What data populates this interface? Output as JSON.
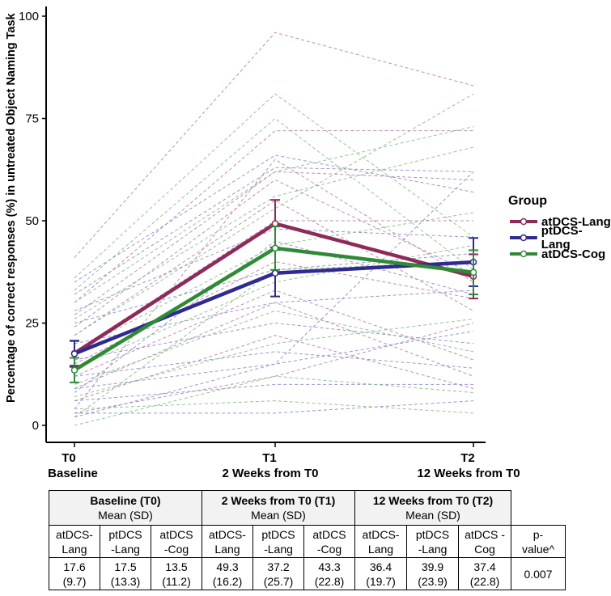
{
  "chart_data": {
    "type": "line",
    "ylabel": "Percentage of correct responses (%) in untreated Object Naming Task",
    "ylim": [
      0,
      100
    ],
    "yticks": [
      "0",
      "25",
      "50",
      "75",
      "100"
    ],
    "x_ticks": [
      {
        "label": "T0",
        "sublabel": "Baseline"
      },
      {
        "label": "T1",
        "sublabel": "2 Weeks from T0"
      },
      {
        "label": "T2",
        "sublabel": "12 Weeks from T0"
      }
    ],
    "legend_title": "Group",
    "colors": {
      "atDCS-Lang": "#8e2a5a",
      "ptDCS-Lang": "#2f2a8f",
      "atDCS-Cog": "#2f8a35"
    },
    "series": [
      {
        "name": "atDCS-Lang",
        "values": [
          17.6,
          49.3,
          36.4
        ],
        "ci_low": [
          14.6,
          43.5,
          31.0
        ],
        "ci_high": [
          20.6,
          55.1,
          41.8
        ]
      },
      {
        "name": "ptDCS-Lang",
        "values": [
          17.5,
          37.2,
          39.9
        ],
        "ci_low": [
          14.3,
          31.5,
          34.0
        ],
        "ci_high": [
          20.7,
          42.9,
          45.8
        ]
      },
      {
        "name": "atDCS-Cog",
        "values": [
          13.5,
          43.3,
          37.4
        ],
        "ci_low": [
          10.5,
          38.0,
          32.0
        ],
        "ci_high": [
          16.5,
          48.6,
          42.8
        ]
      }
    ],
    "individual_lines": [
      {
        "group": "atDCS-Lang",
        "values": [
          41,
          96,
          83
        ]
      },
      {
        "group": "atDCS-Lang",
        "values": [
          30,
          72,
          72
        ]
      },
      {
        "group": "atDCS-Lang",
        "values": [
          27,
          62,
          60
        ]
      },
      {
        "group": "atDCS-Lang",
        "values": [
          22,
          55,
          28
        ]
      },
      {
        "group": "atDCS-Lang",
        "values": [
          18,
          50,
          50
        ]
      },
      {
        "group": "atDCS-Lang",
        "values": [
          15,
          40,
          31
        ]
      },
      {
        "group": "atDCS-Lang",
        "values": [
          12,
          33,
          16
        ]
      },
      {
        "group": "atDCS-Lang",
        "values": [
          9,
          30,
          12
        ]
      },
      {
        "group": "atDCS-Lang",
        "values": [
          6,
          22,
          9
        ]
      },
      {
        "group": "atDCS-Lang",
        "values": [
          4,
          65,
          35
        ]
      },
      {
        "group": "atDCS-Lang",
        "values": [
          24,
          60,
          37
        ]
      },
      {
        "group": "atDCS-Lang",
        "values": [
          3,
          12,
          25
        ]
      },
      {
        "group": "ptDCS-Lang",
        "values": [
          35,
          66,
          57
        ]
      },
      {
        "group": "ptDCS-Lang",
        "values": [
          32,
          63,
          62
        ]
      },
      {
        "group": "ptDCS-Lang",
        "values": [
          28,
          48,
          46
        ]
      },
      {
        "group": "ptDCS-Lang",
        "values": [
          25,
          38,
          42
        ]
      },
      {
        "group": "ptDCS-Lang",
        "values": [
          20,
          30,
          33
        ]
      },
      {
        "group": "ptDCS-Lang",
        "values": [
          16,
          25,
          20
        ]
      },
      {
        "group": "ptDCS-Lang",
        "values": [
          12,
          18,
          14
        ]
      },
      {
        "group": "ptDCS-Lang",
        "values": [
          9,
          15,
          23
        ]
      },
      {
        "group": "ptDCS-Lang",
        "values": [
          6,
          10,
          10
        ]
      },
      {
        "group": "ptDCS-Lang",
        "values": [
          3,
          3,
          6
        ]
      },
      {
        "group": "ptDCS-Lang",
        "values": [
          2,
          15,
          62
        ]
      },
      {
        "group": "ptDCS-Lang",
        "values": [
          8,
          45,
          32
        ]
      },
      {
        "group": "atDCS-Cog",
        "values": [
          36,
          81,
          46
        ]
      },
      {
        "group": "atDCS-Cog",
        "values": [
          33,
          75,
          38
        ]
      },
      {
        "group": "atDCS-Cog",
        "values": [
          30,
          62,
          73
        ]
      },
      {
        "group": "atDCS-Cog",
        "values": [
          26,
          56,
          68
        ]
      },
      {
        "group": "atDCS-Cog",
        "values": [
          22,
          53,
          81
        ]
      },
      {
        "group": "atDCS-Cog",
        "values": [
          18,
          44,
          52
        ]
      },
      {
        "group": "atDCS-Cog",
        "values": [
          14,
          35,
          44
        ]
      },
      {
        "group": "atDCS-Cog",
        "values": [
          10,
          28,
          18
        ]
      },
      {
        "group": "atDCS-Cog",
        "values": [
          7,
          20,
          26
        ]
      },
      {
        "group": "atDCS-Cog",
        "values": [
          4,
          6,
          3
        ]
      },
      {
        "group": "atDCS-Cog",
        "values": [
          0,
          12,
          8
        ]
      },
      {
        "group": "atDCS-Cog",
        "values": [
          2,
          38,
          40
        ]
      }
    ]
  },
  "table": {
    "groups": [
      {
        "title": "Baseline (T0)",
        "subtitle": "Mean (SD)"
      },
      {
        "title": "2 Weeks from T0 (T1)",
        "subtitle": "Mean (SD)"
      },
      {
        "title": "12 Weeks from T0 (T2)",
        "subtitle": "Mean (SD)"
      }
    ],
    "columns": [
      {
        "top": "atDCS-",
        "bottom": "Lang"
      },
      {
        "top": "ptDCS",
        "bottom": "-Lang"
      },
      {
        "top": "atDCS",
        "bottom": "-Cog"
      },
      {
        "top": "atDCS-",
        "bottom": "Lang"
      },
      {
        "top": "ptDCS",
        "bottom": "-Lang"
      },
      {
        "top": "atDCS",
        "bottom": "-Cog"
      },
      {
        "top": "atDCS-",
        "bottom": "Lang"
      },
      {
        "top": "ptDCS",
        "bottom": "-Lang"
      },
      {
        "top": "atDCS -",
        "bottom": "Cog"
      }
    ],
    "values": [
      {
        "mean": "17.6",
        "sd": "(9.7)"
      },
      {
        "mean": "17.5",
        "sd": "(13.3)"
      },
      {
        "mean": "13.5",
        "sd": "(11.2)"
      },
      {
        "mean": "49.3",
        "sd": "(16.2)"
      },
      {
        "mean": "37.2",
        "sd": "(25.7)"
      },
      {
        "mean": "43.3",
        "sd": "(22.8)"
      },
      {
        "mean": "36.4",
        "sd": "(19.7)"
      },
      {
        "mean": "39.9",
        "sd": "(23.9)"
      },
      {
        "mean": "37.4",
        "sd": "(22.8)"
      }
    ],
    "pvalue_label_top": "p-",
    "pvalue_label_bottom": "value^",
    "pvalue": "0.007"
  }
}
